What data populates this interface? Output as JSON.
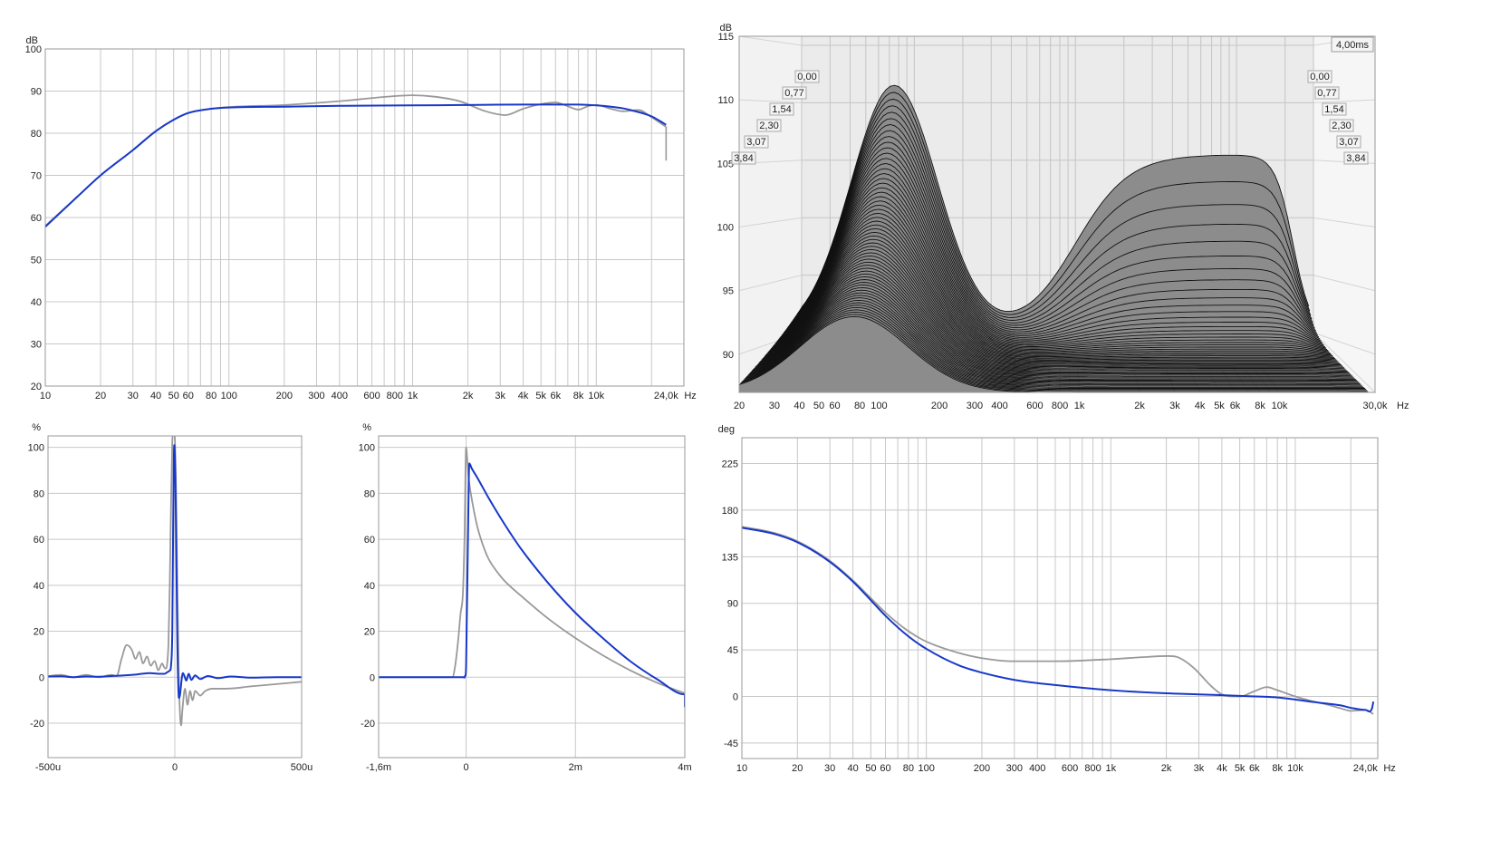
{
  "chart_data": [
    {
      "id": "frequency_response",
      "type": "line",
      "x_scale": "log",
      "ylabel": "dB",
      "xlim": [
        10,
        30000
      ],
      "ylim": [
        20,
        100
      ],
      "y_ticks": [
        20,
        30,
        40,
        50,
        60,
        70,
        80,
        90,
        100
      ],
      "x_ticks": [
        {
          "v": 10,
          "label": "10"
        },
        {
          "v": 20,
          "label": "20"
        },
        {
          "v": 30,
          "label": "30"
        },
        {
          "v": 40,
          "label": "40"
        },
        {
          "v": 50,
          "label": "50"
        },
        {
          "v": 60,
          "label": "60"
        },
        {
          "v": 80,
          "label": "80"
        },
        {
          "v": 100,
          "label": "100"
        },
        {
          "v": 200,
          "label": "200"
        },
        {
          "v": 300,
          "label": "300"
        },
        {
          "v": 400,
          "label": "400"
        },
        {
          "v": 600,
          "label": "600"
        },
        {
          "v": 800,
          "label": "800"
        },
        {
          "v": 1000,
          "label": "1k"
        },
        {
          "v": 2000,
          "label": "2k"
        },
        {
          "v": 3000,
          "label": "3k"
        },
        {
          "v": 4000,
          "label": "4k"
        },
        {
          "v": 5000,
          "label": "5k"
        },
        {
          "v": 6000,
          "label": "6k"
        },
        {
          "v": 8000,
          "label": "8k"
        },
        {
          "v": 10000,
          "label": "10k"
        },
        {
          "v": 24000,
          "label": "24,0k"
        }
      ],
      "x_unit": "Hz",
      "grid": true,
      "series": [
        {
          "color": "#999999",
          "x": [
            10,
            15,
            20,
            30,
            40,
            50,
            60,
            80,
            100,
            200,
            400,
            700,
            1000,
            1300,
            1800,
            2500,
            3200,
            4000,
            5000,
            6000,
            7000,
            8000,
            9000,
            10000,
            12000,
            14000,
            17000,
            20000,
            24000
          ],
          "y": [
            58,
            65,
            70,
            76,
            80.5,
            83.2,
            84.8,
            85.8,
            86.2,
            86.7,
            87.6,
            88.6,
            89,
            88.7,
            87.6,
            85.2,
            84.3,
            85.8,
            86.9,
            87.3,
            86.4,
            85.6,
            86.4,
            86.7,
            85.8,
            85.2,
            85.5,
            83.8,
            81.5
          ]
        },
        {
          "color": "#1838c8",
          "x": [
            10,
            15,
            20,
            30,
            40,
            50,
            60,
            80,
            100,
            200,
            400,
            1000,
            2000,
            4000,
            8000,
            10000,
            12000,
            14000,
            16000,
            18000,
            20000,
            22000,
            24000
          ],
          "y": [
            57.8,
            65,
            70,
            76,
            80.5,
            83.2,
            84.8,
            85.8,
            86.1,
            86.3,
            86.5,
            86.6,
            86.7,
            86.8,
            86.8,
            86.6,
            86.3,
            85.9,
            85.3,
            84.7,
            84,
            83,
            82
          ]
        }
      ],
      "end_drop": {
        "x": 24000,
        "y": 73.5
      }
    },
    {
      "id": "waterfall",
      "type": "area",
      "x_scale": "log",
      "ylabel": "dB",
      "xlim": [
        20,
        30000
      ],
      "ylim": [
        87,
        115
      ],
      "y_ticks": [
        90,
        95,
        100,
        105,
        110,
        115
      ],
      "x_ticks": [
        {
          "v": 20,
          "label": "20"
        },
        {
          "v": 30,
          "label": "30"
        },
        {
          "v": 40,
          "label": "40"
        },
        {
          "v": 50,
          "label": "50"
        },
        {
          "v": 60,
          "label": "60"
        },
        {
          "v": 80,
          "label": "80"
        },
        {
          "v": 100,
          "label": "100"
        },
        {
          "v": 200,
          "label": "200"
        },
        {
          "v": 300,
          "label": "300"
        },
        {
          "v": 400,
          "label": "400"
        },
        {
          "v": 600,
          "label": "600"
        },
        {
          "v": 800,
          "label": "800"
        },
        {
          "v": 1000,
          "label": "1k"
        },
        {
          "v": 2000,
          "label": "2k"
        },
        {
          "v": 3000,
          "label": "3k"
        },
        {
          "v": 4000,
          "label": "4k"
        },
        {
          "v": 5000,
          "label": "5k"
        },
        {
          "v": 6000,
          "label": "6k"
        },
        {
          "v": 8000,
          "label": "8k"
        },
        {
          "v": 10000,
          "label": "10k"
        },
        {
          "v": 30000,
          "label": "30,0k"
        }
      ],
      "x_unit": "Hz",
      "time_range_label": "4,00ms",
      "time_labels": [
        "0,00",
        "0,77",
        "1,54",
        "2,30",
        "3,07",
        "3,84"
      ],
      "slices": 60,
      "fill_color": "#8c8c8c",
      "edge_color": "#111111",
      "grid": true
    },
    {
      "id": "impulse_response",
      "type": "line",
      "ylabel": "%",
      "xlim": [
        -500,
        500
      ],
      "ylim": [
        -35,
        105
      ],
      "y_ticks": [
        -20,
        0,
        20,
        40,
        60,
        80,
        100
      ],
      "x_ticks": [
        {
          "v": -500,
          "label": "-500u"
        },
        {
          "v": 0,
          "label": "0"
        },
        {
          "v": 500,
          "label": "500u"
        }
      ],
      "grid": true,
      "series": [
        {
          "color": "#999999",
          "x": [
            -500,
            -450,
            -400,
            -350,
            -300,
            -250,
            -230,
            -210,
            -190,
            -170,
            -155,
            -140,
            -125,
            -110,
            -95,
            -80,
            -65,
            -50,
            -40,
            -30,
            -25,
            -20,
            -15,
            -10,
            -5,
            0,
            5,
            10,
            15,
            20,
            25,
            30,
            40,
            50,
            60,
            70,
            80,
            100,
            120,
            150,
            200,
            300,
            400,
            500
          ],
          "y": [
            0.5,
            1,
            0,
            1,
            0,
            1,
            0.5,
            8,
            14,
            12,
            8,
            11,
            6,
            9,
            5,
            7,
            3,
            6,
            4,
            6,
            15,
            40,
            75,
            102,
            108,
            104,
            80,
            40,
            5,
            -15,
            -21,
            -14,
            -5,
            -12,
            -6,
            -10,
            -6,
            -8,
            -6,
            -5,
            -5,
            -4,
            -3,
            -2
          ]
        },
        {
          "color": "#1838c8",
          "x": [
            -500,
            -450,
            -400,
            -350,
            -300,
            -250,
            -200,
            -150,
            -100,
            -60,
            -40,
            -30,
            -20,
            -15,
            -10,
            -7,
            -4,
            -2,
            0,
            2,
            4,
            6,
            8,
            10,
            12,
            14,
            16,
            20,
            24,
            28,
            32,
            38,
            45,
            55,
            65,
            80,
            100,
            130,
            170,
            220,
            300,
            400,
            500
          ],
          "y": [
            0.3,
            0.4,
            0,
            0.3,
            0.2,
            0.5,
            0.8,
            1.2,
            1.8,
            1.5,
            1.5,
            2.2,
            3,
            5,
            20,
            60,
            95,
            101,
            97,
            88,
            72,
            52,
            32,
            15,
            3,
            -5,
            -9,
            -8,
            -4,
            0,
            1.8,
            0.5,
            -1.5,
            1.5,
            -1.2,
            0.8,
            -0.8,
            0.5,
            -0.4,
            0.3,
            -0.2,
            0,
            0
          ]
        }
      ]
    },
    {
      "id": "step_response",
      "type": "line",
      "ylabel": "%",
      "xlim": [
        -1.6,
        4
      ],
      "ylim": [
        -35,
        105
      ],
      "y_ticks": [
        -20,
        0,
        20,
        40,
        60,
        80,
        100
      ],
      "x_ticks": [
        {
          "v": -1.6,
          "label": "-1,6m"
        },
        {
          "v": 0,
          "label": "0"
        },
        {
          "v": 2,
          "label": "2m"
        },
        {
          "v": 4,
          "label": "4m"
        }
      ],
      "grid": true,
      "series": [
        {
          "color": "#999999",
          "x": [
            -1.6,
            -0.25,
            -0.2,
            -0.15,
            -0.1,
            -0.06,
            -0.03,
            0,
            0.02,
            0.05,
            0.1,
            0.2,
            0.3,
            0.4,
            0.5,
            0.7,
            1,
            1.5,
            2,
            2.5,
            3,
            3.5,
            4
          ],
          "y": [
            0,
            0,
            5,
            15,
            28,
            36,
            60,
            100,
            95,
            86,
            78,
            66,
            58,
            52,
            48,
            42,
            35.5,
            25.5,
            17,
            9.5,
            3,
            -2.5,
            -7
          ]
        },
        {
          "color": "#1838c8",
          "x": [
            -1.6,
            -0.05,
            -0.02,
            0,
            0.05,
            0.06,
            0.1,
            0.2,
            0.4,
            0.6,
            0.8,
            1,
            1.5,
            2,
            2.5,
            3,
            3.5,
            4,
            4
          ],
          "y": [
            0,
            0,
            0.5,
            5,
            88,
            93,
            91,
            87,
            78.5,
            70.5,
            63,
            56,
            41,
            28,
            17,
            7,
            -1,
            -7.5,
            -13
          ]
        }
      ]
    },
    {
      "id": "phase_response",
      "type": "line",
      "x_scale": "log",
      "ylabel": "deg",
      "xlim": [
        10,
        28000
      ],
      "ylim": [
        -60,
        250
      ],
      "y_ticks": [
        -45,
        0,
        45,
        90,
        135,
        180,
        225
      ],
      "x_ticks": [
        {
          "v": 10,
          "label": "10"
        },
        {
          "v": 20,
          "label": "20"
        },
        {
          "v": 30,
          "label": "30"
        },
        {
          "v": 40,
          "label": "40"
        },
        {
          "v": 50,
          "label": "50"
        },
        {
          "v": 60,
          "label": "60"
        },
        {
          "v": 80,
          "label": "80"
        },
        {
          "v": 100,
          "label": "100"
        },
        {
          "v": 200,
          "label": "200"
        },
        {
          "v": 300,
          "label": "300"
        },
        {
          "v": 400,
          "label": "400"
        },
        {
          "v": 600,
          "label": "600"
        },
        {
          "v": 800,
          "label": "800"
        },
        {
          "v": 1000,
          "label": "1k"
        },
        {
          "v": 2000,
          "label": "2k"
        },
        {
          "v": 3000,
          "label": "3k"
        },
        {
          "v": 4000,
          "label": "4k"
        },
        {
          "v": 5000,
          "label": "5k"
        },
        {
          "v": 6000,
          "label": "6k"
        },
        {
          "v": 8000,
          "label": "8k"
        },
        {
          "v": 10000,
          "label": "10k"
        },
        {
          "v": 24000,
          "label": "24,0k"
        }
      ],
      "x_unit": "Hz",
      "grid": true,
      "series": [
        {
          "color": "#999999",
          "x": [
            10,
            15,
            20,
            30,
            40,
            50,
            60,
            80,
            100,
            150,
            200,
            300,
            500,
            1000,
            1500,
            2000,
            2300,
            2800,
            3500,
            4000,
            5000,
            6000,
            7000,
            8000,
            10000,
            12000,
            15000,
            18000,
            20000,
            24000,
            26500
          ],
          "y": [
            164,
            158,
            150,
            131,
            112,
            95,
            81,
            63,
            53,
            42,
            37,
            34,
            34,
            36,
            38,
            39,
            38,
            28,
            10,
            2,
            0,
            5,
            9,
            6,
            0,
            -4,
            -8,
            -12,
            -14,
            -13,
            -17
          ]
        },
        {
          "color": "#1838c8",
          "x": [
            10,
            15,
            20,
            30,
            40,
            50,
            60,
            80,
            100,
            150,
            200,
            300,
            500,
            1000,
            2000,
            3000,
            5000,
            8000,
            10000,
            12000,
            15000,
            18000,
            20000,
            24000,
            26000,
            26500
          ],
          "y": [
            163,
            157,
            149,
            130,
            111,
            93,
            78,
            58,
            46,
            30,
            23,
            16,
            11,
            6,
            3,
            2,
            0.5,
            -1,
            -3,
            -5,
            -7,
            -9,
            -11,
            -13,
            -12,
            -5
          ]
        }
      ]
    }
  ]
}
